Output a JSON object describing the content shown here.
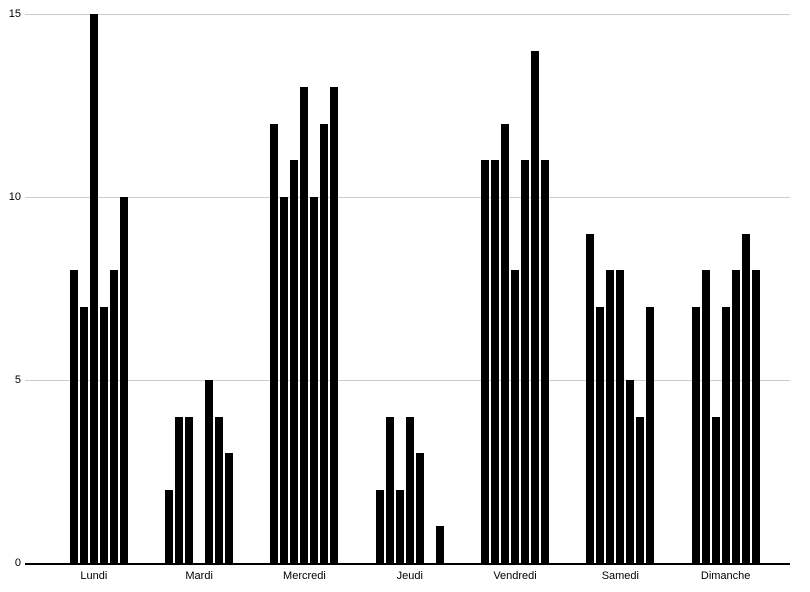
{
  "chart_data": {
    "type": "bar",
    "categories": [
      "Lundi",
      "Mardi",
      "Mercredi",
      "Jeudi",
      "Vendredi",
      "Samedi",
      "Dimanche"
    ],
    "groups": [
      {
        "label": "Lundi",
        "values": [
          0,
          8,
          7,
          15,
          7,
          8,
          10
        ]
      },
      {
        "label": "Mardi",
        "values": [
          2,
          4,
          4,
          0,
          5,
          4,
          3
        ]
      },
      {
        "label": "Mercredi",
        "values": [
          12,
          10,
          11,
          13,
          10,
          12,
          13
        ]
      },
      {
        "label": "Jeudi",
        "values": [
          2,
          4,
          2,
          4,
          3,
          0,
          1
        ]
      },
      {
        "label": "Vendredi",
        "values": [
          11,
          11,
          12,
          8,
          11,
          14,
          11
        ]
      },
      {
        "label": "Samedi",
        "values": [
          9,
          7,
          8,
          8,
          5,
          4,
          7
        ]
      },
      {
        "label": "Dimanche",
        "values": [
          7,
          8,
          4,
          7,
          8,
          9,
          8
        ]
      }
    ],
    "yticks": [
      0,
      5,
      10,
      15
    ],
    "ylim": [
      0,
      15
    ],
    "grid": true,
    "legend_position": "none",
    "bar_color": "#000000",
    "gridline_color": "#cccccc",
    "axis_color": "#000000",
    "label_color": "#000000",
    "background_color": "#ffffff"
  }
}
